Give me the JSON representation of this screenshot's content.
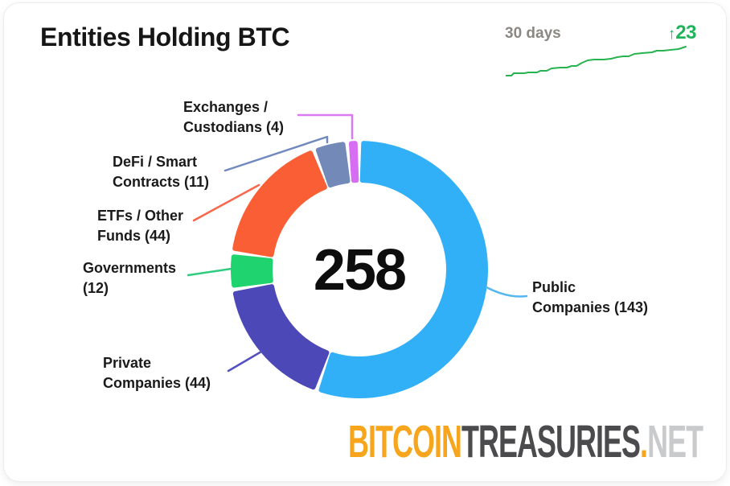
{
  "card": {
    "title": "Entities Holding BTC",
    "period": {
      "label": "30 days",
      "arrow": "↑",
      "delta": "23",
      "delta_color": "#1fb45b"
    }
  },
  "chart_data": {
    "type": "pie",
    "subtype": "donut",
    "title": "Entities Holding BTC",
    "total": 258,
    "center_label": "258",
    "legend_position": "around",
    "segments": [
      {
        "id": "public-companies",
        "label": "Public Companies",
        "value": 143,
        "color": "#31aff7",
        "leader_color": "#54b7ef",
        "label_lines": [
          "Public",
          "Companies (143)"
        ]
      },
      {
        "id": "private-companies",
        "label": "Private Companies",
        "value": 44,
        "color": "#4c48b7",
        "leader_color": "#5450c2",
        "label_lines": [
          "Private",
          "Companies (44)"
        ]
      },
      {
        "id": "governments",
        "label": "Governments",
        "value": 12,
        "color": "#1fd36e",
        "leader_color": "#2ecc7e",
        "label_lines": [
          "Governments",
          "(12)"
        ]
      },
      {
        "id": "etfs-other-funds",
        "label": "ETFs / Other Funds",
        "value": 44,
        "color": "#f95e34",
        "leader_color": "#f9664a",
        "label_lines": [
          "ETFs / Other",
          "Funds (44)"
        ]
      },
      {
        "id": "defi-smart-contracts",
        "label": "DeFi / Smart Contracts",
        "value": 11,
        "color": "#7389b8",
        "leader_color": "#7189be",
        "label_lines": [
          "DeFi / Smart",
          "Contracts (11)"
        ]
      },
      {
        "id": "exchanges-custodians",
        "label": "Exchanges / Custodians",
        "value": 4,
        "color": "#d76df3",
        "leader_color": "#db79f2",
        "label_lines": [
          "Exchanges /",
          "Custodians (4)"
        ]
      }
    ],
    "sparkline": {
      "label": "30 days",
      "delta": 23,
      "color": "#28b350",
      "points": [
        [
          0,
          39
        ],
        [
          7,
          39
        ],
        [
          10,
          36
        ],
        [
          23,
          36
        ],
        [
          28,
          35
        ],
        [
          39,
          35
        ],
        [
          43,
          33
        ],
        [
          51,
          33
        ],
        [
          57,
          30
        ],
        [
          68,
          29
        ],
        [
          76,
          29
        ],
        [
          82,
          27
        ],
        [
          88,
          27
        ],
        [
          95,
          23
        ],
        [
          102,
          20
        ],
        [
          110,
          19
        ],
        [
          122,
          19
        ],
        [
          131,
          18
        ],
        [
          139,
          16
        ],
        [
          146,
          15
        ],
        [
          153,
          15
        ],
        [
          160,
          12
        ],
        [
          170,
          11
        ],
        [
          182,
          10
        ],
        [
          188,
          8
        ],
        [
          196,
          8
        ],
        [
          205,
          7
        ],
        [
          215,
          6
        ],
        [
          224,
          3
        ]
      ]
    }
  },
  "watermark": {
    "bitcoin": "BITCOIN",
    "treasuries": "TREASURIES",
    "dot": ".",
    "net": "NET"
  }
}
